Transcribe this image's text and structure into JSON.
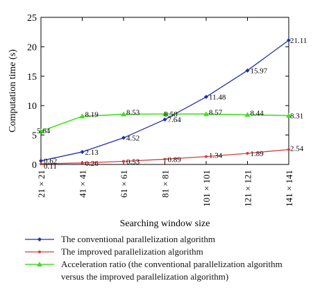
{
  "chart_data": {
    "type": "line",
    "categories": [
      "21 × 21",
      "41 × 41",
      "61 × 61",
      "81 × 81",
      "101 × 101",
      "121 × 121",
      "141 × 141"
    ],
    "xlabel": "Searching window size",
    "ylabel": "Computation time (s)",
    "ylim": [
      0,
      25
    ],
    "yticks": [
      0,
      5,
      10,
      15,
      20,
      25
    ],
    "grid": false,
    "legend_position": "bottom",
    "series": [
      {
        "name": "The conventional parallelization algorithm",
        "color": "#1f2fa8",
        "marker": "diamond",
        "values": [
          0.62,
          2.13,
          4.52,
          7.64,
          11.48,
          15.97,
          21.11
        ],
        "labels": [
          "0.62",
          "2.13",
          "4.52",
          "7.64",
          "11.48",
          "15.97",
          "21.11"
        ]
      },
      {
        "name": "The improved parallelization algorithm",
        "color": "#d63a3a",
        "marker": "dot",
        "values": [
          0.11,
          0.26,
          0.53,
          0.89,
          1.34,
          1.89,
          2.54
        ],
        "labels": [
          "0.11",
          "0.26",
          "0.53",
          "0.89",
          "1.34",
          "1.89",
          "2.54"
        ]
      },
      {
        "name": "Acceleration ratio (the conventional parallelization algorithm",
        "name_cont": "versus the improved parallelization algorithm)",
        "color": "#44dd22",
        "marker": "triangle",
        "values": [
          5.64,
          8.19,
          8.53,
          8.58,
          8.57,
          8.44,
          8.31
        ],
        "labels": [
          "5.64",
          "8.19",
          "8.53",
          "8.58",
          "8.57",
          "8.44",
          "8.31"
        ]
      }
    ]
  }
}
